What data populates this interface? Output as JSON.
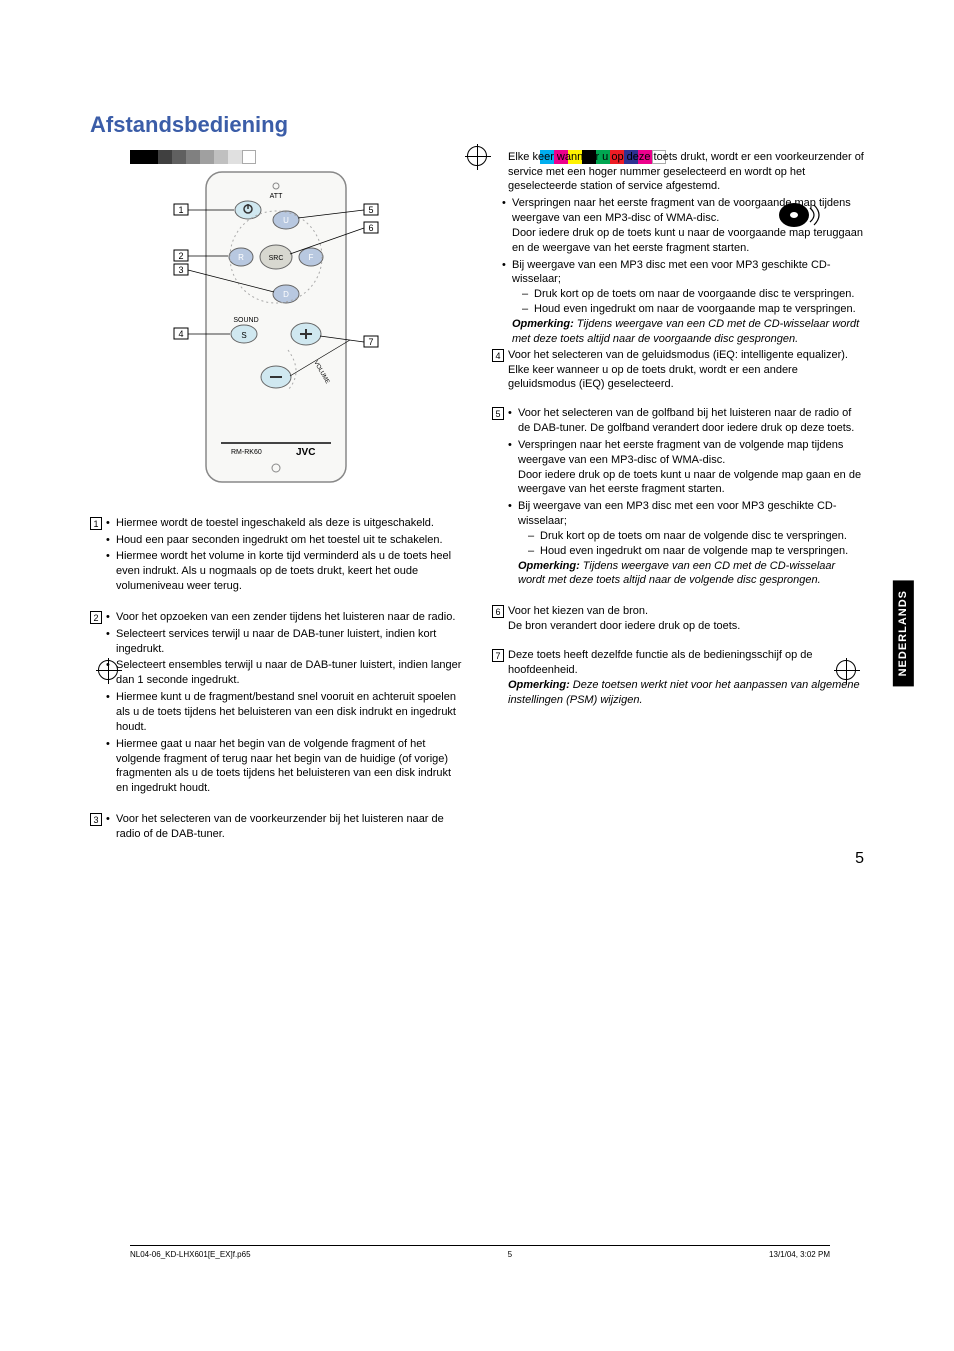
{
  "title": "Afstandsbediening",
  "side_tab": "NEDERLANDS",
  "page_number": "5",
  "printer_colors_left": [
    "#000000",
    "#000000",
    "#404040",
    "#606060",
    "#808080",
    "#a0a0a0",
    "#c0c0c0",
    "#e0e0e0",
    "#ffffff"
  ],
  "printer_colors_right": [
    "#00aeef",
    "#ec008c",
    "#fff200",
    "#000000",
    "#00a651",
    "#ed1c24",
    "#2e3192",
    "#ec008c",
    "#ffffff"
  ],
  "remote": {
    "model": "RM-RK60",
    "brand": "JVC",
    "att_label": "ATT",
    "sound_label": "SOUND",
    "volume_label": "VOLUME",
    "buttons": {
      "u": "U",
      "d": "D",
      "r": "R",
      "f": "F",
      "src": "SRC",
      "s": "S"
    }
  },
  "items": {
    "n1": {
      "b1": "Hiermee wordt de toestel ingeschakeld als deze is uitgeschakeld.",
      "b2": "Houd een paar seconden ingedrukt om het toestel uit te schakelen.",
      "b3": "Hiermee wordt het volume in korte tijd verminderd als u de toets heel even indrukt. Als u nogmaals op de toets drukt, keert het oude volumeniveau weer terug."
    },
    "n2": {
      "b1": "Voor het opzoeken van een zender tijdens het luisteren naar de radio.",
      "b2": "Selecteert services terwijl u naar de DAB-tuner luistert, indien kort ingedrukt.",
      "b3": "Selecteert ensembles terwijl u naar de DAB-tuner luistert, indien langer dan 1 seconde ingedrukt.",
      "b4": "Hiermee kunt u de fragment/bestand snel vooruit en achteruit spoelen als u de toets tijdens het beluisteren van een disk indrukt en ingedrukt houdt.",
      "b5": "Hiermee gaat u naar het begin van de volgende fragment of het volgende fragment of terug naar het begin van de huidige (of vorige) fragmenten als u de toets tijdens het beluisteren van een disk indrukt en ingedrukt houdt."
    },
    "n3": {
      "b1": "Voor het selecteren van de voorkeurzender bij het luisteren naar de radio of de DAB-tuner.",
      "cont": "Elke keer wanneer u op deze toets drukt, wordt er een voorkeurzender of service met een hoger nummer geselecteerd en wordt op het geselecteerde station of service afgestemd.",
      "b2": "Verspringen naar het eerste fragment van de voorgaande map tijdens weergave van een MP3-disc of WMA-disc.",
      "b2_cont": "Door iedere druk op de toets kunt u naar de voorgaande map teruggaan en de weergave van het eerste fragment starten.",
      "b3": "Bij weergave van een MP3 disc met een voor MP3 geschikte CD-wisselaar;",
      "b3_d1": "Druk kort op de toets om naar de voorgaande disc te verspringen.",
      "b3_d2": "Houd even ingedrukt om naar de voorgaande map te verspringen.",
      "note_label": "Opmerking:",
      "note": "Tijdens weergave van een CD met de CD-wisselaar wordt met deze toets altijd naar de voorgaande disc gesprongen."
    },
    "n4": {
      "p1": "Voor het selecteren van de geluidsmodus (iEQ: intelligente equalizer).",
      "p2": "Elke keer wanneer u op de toets drukt, wordt er een andere geluidsmodus (iEQ) geselecteerd."
    },
    "n5": {
      "b1": "Voor het selecteren van de golfband bij het luisteren naar de radio of de DAB-tuner. De golfband verandert door iedere druk op deze toets.",
      "b2": "Verspringen naar het eerste fragment van de volgende map tijdens weergave van een MP3-disc of WMA-disc.",
      "b2_cont": "Door iedere druk op de toets kunt u naar de volgende map gaan en de weergave van het eerste fragment starten.",
      "b3": "Bij weergave van een MP3 disc met een voor MP3 geschikte CD-wisselaar;",
      "b3_d1": "Druk kort op de toets om naar de volgende disc te verspringen.",
      "b3_d2": "Houd even ingedrukt om naar de volgende map te verspringen.",
      "note_label": "Opmerking:",
      "note": "Tijdens weergave van een CD met de CD-wisselaar wordt met deze toets altijd naar de volgende disc gesprongen."
    },
    "n6": {
      "p1": "Voor het kiezen van de bron.",
      "p2": "De bron verandert door iedere druk op de toets."
    },
    "n7": {
      "p1": "Deze toets heeft dezelfde functie als de bedieningsschijf op de hoofdeenheid.",
      "note_label": "Opmerking:",
      "note": "Deze toetsen werkt niet voor het aanpassen van algemene instellingen (PSM) wijzigen."
    }
  },
  "footer": {
    "file": "NL04-06_KD-LHX601[E_EX]f.p65",
    "page": "5",
    "datetime": "13/1/04, 3:02 PM"
  }
}
